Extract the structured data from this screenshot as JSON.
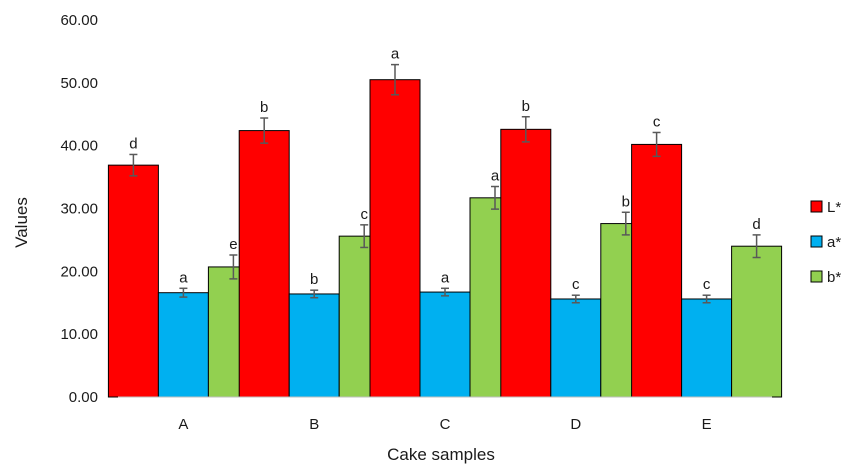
{
  "chart_data": {
    "type": "bar",
    "title": "",
    "xlabel": "Cake samples",
    "ylabel": "Values",
    "ylim": [
      0,
      60
    ],
    "yticks": [
      "0.00",
      "10.00",
      "20.00",
      "30.00",
      "40.00",
      "50.00",
      "60.00"
    ],
    "grid": false,
    "legend_position": "right",
    "categories": [
      "A",
      "B",
      "C",
      "D",
      "E"
    ],
    "series": [
      {
        "name": "L*",
        "color": "#ff0000",
        "values": [
          36.9,
          42.4,
          50.5,
          42.6,
          40.2
        ],
        "errors": [
          1.7,
          2.0,
          2.4,
          2.0,
          1.9
        ],
        "labels": [
          "d",
          "b",
          "a",
          "b",
          "c"
        ]
      },
      {
        "name": "a*",
        "color": "#00b0f0",
        "values": [
          16.6,
          16.4,
          16.7,
          15.6,
          15.6
        ],
        "errors": [
          0.7,
          0.6,
          0.6,
          0.6,
          0.6
        ],
        "labels": [
          "a",
          "b",
          "a",
          "c",
          "c"
        ]
      },
      {
        "name": "b*",
        "color": "#92d050",
        "values": [
          20.7,
          25.6,
          31.7,
          27.6,
          24.0
        ],
        "errors": [
          1.9,
          1.8,
          1.8,
          1.8,
          1.8
        ],
        "labels": [
          "e",
          "c",
          "a",
          "b",
          "d"
        ]
      }
    ]
  }
}
